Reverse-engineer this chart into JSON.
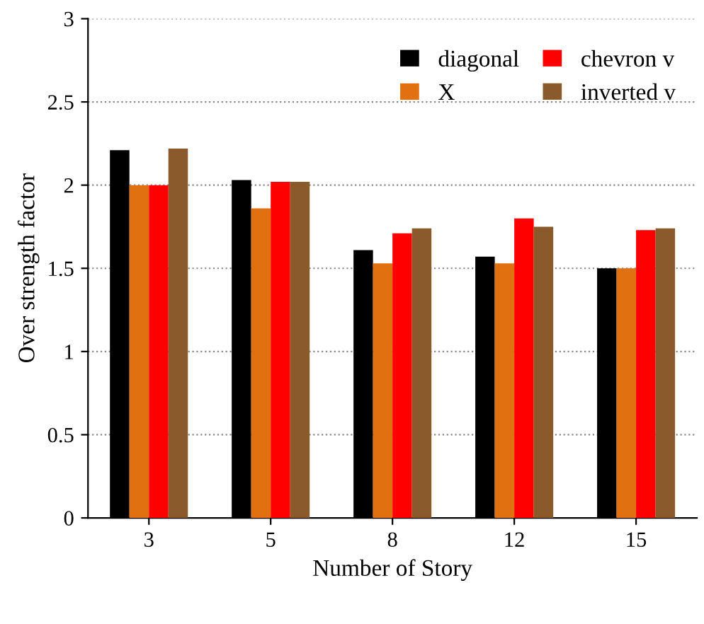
{
  "chart_data": {
    "type": "bar",
    "xlabel": "Number of Story",
    "ylabel": "Over strength factor",
    "categories": [
      "3",
      "5",
      "8",
      "12",
      "15"
    ],
    "series": [
      {
        "name": "diagonal",
        "color": "#000000",
        "values": [
          2.21,
          2.03,
          1.61,
          1.57,
          1.5
        ]
      },
      {
        "name": "X",
        "color": "#e07010",
        "values": [
          2.0,
          1.86,
          1.53,
          1.53,
          1.5
        ]
      },
      {
        "name": "chevron v",
        "color": "#ff0000",
        "values": [
          2.0,
          2.02,
          1.71,
          1.8,
          1.73
        ]
      },
      {
        "name": "inverted v",
        "color": "#8b5a2b",
        "values": [
          2.22,
          2.02,
          1.74,
          1.75,
          1.74
        ]
      }
    ],
    "ylim": [
      0,
      3
    ],
    "yticks": [
      0,
      0.5,
      1,
      1.5,
      2,
      2.5,
      3
    ],
    "grid": "y",
    "legend": "top right"
  }
}
